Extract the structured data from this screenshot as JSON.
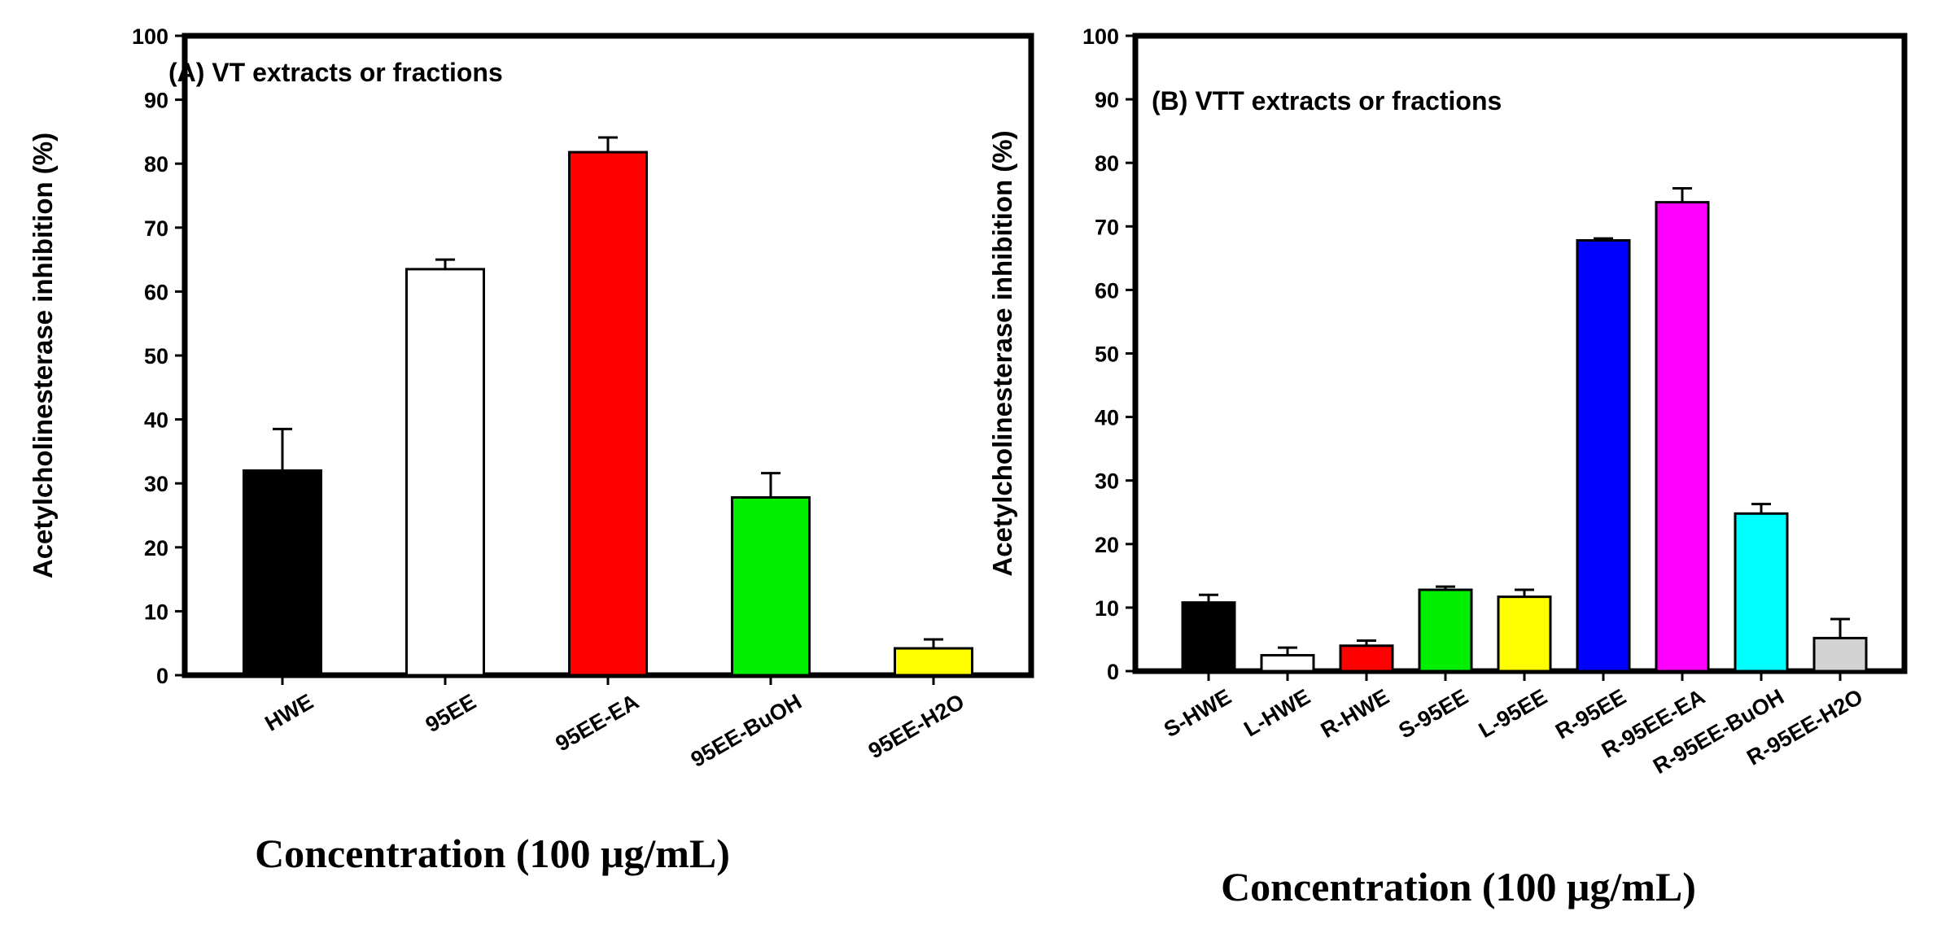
{
  "chart_data": [
    {
      "type": "bar",
      "title": "(A) VT extracts or fractions",
      "xlabel": "Concentration (100 μg/mL)",
      "ylabel": "Acetylcholinesterase inhibition (%)",
      "ylim": [
        0,
        100
      ],
      "yticks": [
        "0",
        "10",
        "20",
        "30",
        "40",
        "50",
        "60",
        "70",
        "80",
        "90",
        "100"
      ],
      "categories": [
        "HWE",
        "95EE",
        "95EE-EA",
        "95EE-BuOH",
        "95EE-H2O"
      ],
      "values": [
        32,
        63.5,
        81.8,
        27.8,
        4.2
      ],
      "errors": [
        6.5,
        1.5,
        2.3,
        3.8,
        1.4
      ],
      "colors": [
        "#000000",
        "#ffffff",
        "#ff0000",
        "#00ee00",
        "#ffff00"
      ],
      "grid": false,
      "legend": "none"
    },
    {
      "type": "bar",
      "title": "(B) VTT extracts or fractions",
      "xlabel": "Concentration (100 μg/mL)",
      "ylabel": "Acetylcholinesterase inhibition (%)",
      "ylim": [
        0,
        100
      ],
      "yticks": [
        "0",
        "10",
        "20",
        "30",
        "40",
        "50",
        "60",
        "70",
        "80",
        "90",
        "100"
      ],
      "categories": [
        "S-HWE",
        "L-HWE",
        "R-HWE",
        "S-95EE",
        "L-95EE",
        "R-95EE",
        "R-95EE-EA",
        "R-95EE-BuOH",
        "R-95EE-H2O"
      ],
      "values": [
        10.8,
        2.5,
        4,
        12.8,
        11.7,
        67.8,
        73.8,
        24.8,
        5.2
      ],
      "errors": [
        1.2,
        1.2,
        0.8,
        0.5,
        1.1,
        0.3,
        2.2,
        1.5,
        3.0
      ],
      "colors": [
        "#000000",
        "#ffffff",
        "#ff0000",
        "#00ee00",
        "#ffff00",
        "#0000ff",
        "#ff00ff",
        "#00ffff",
        "#d3d3d3"
      ],
      "grid": false,
      "legend": "none"
    }
  ]
}
